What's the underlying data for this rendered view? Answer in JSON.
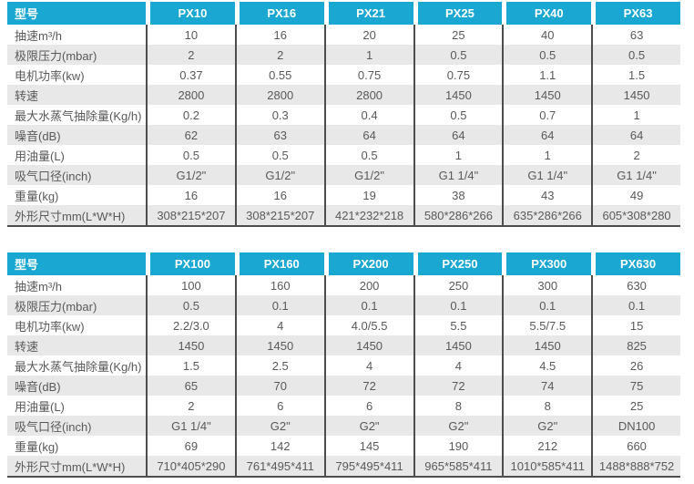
{
  "colors": {
    "header_bg": "#1aa8d3",
    "header_text": "#ffffff",
    "row_bg": "#ffffff",
    "row_alt_bg": "#e8e8e8",
    "text": "#595959",
    "divider": "#4d4d4d"
  },
  "tables": [
    {
      "header": {
        "label": "型号",
        "columns": [
          "PX10",
          "PX16",
          "PX21",
          "PX25",
          "PX40",
          "PX63"
        ]
      },
      "rows": [
        {
          "label": "抽速m³/h",
          "values": [
            "10",
            "16",
            "20",
            "25",
            "40",
            "63"
          ]
        },
        {
          "label": "极限压力(mbar)",
          "values": [
            "2",
            "2",
            "1",
            "0.5",
            "0.5",
            "0.5"
          ]
        },
        {
          "label": "电机功率(kw)",
          "values": [
            "0.37",
            "0.55",
            "0.75",
            "0.75",
            "1.1",
            "1.5"
          ]
        },
        {
          "label": "转速",
          "values": [
            "2800",
            "2800",
            "2800",
            "1450",
            "1450",
            "1450"
          ]
        },
        {
          "label": "最大水蒸气抽除量(Kg/h)",
          "values": [
            "0.2",
            "0.3",
            "0.4",
            "0.5",
            "0.7",
            "1"
          ]
        },
        {
          "label": "噪音(dB)",
          "values": [
            "62",
            "63",
            "64",
            "64",
            "64",
            "64"
          ]
        },
        {
          "label": "用油量(L)",
          "values": [
            "0.5",
            "0.5",
            "0.5",
            "1",
            "1",
            "2"
          ]
        },
        {
          "label": "吸气口径(inch)",
          "values": [
            "G1/2\"",
            "G1/2\"",
            "G1/2\"",
            "G1 1/4\"",
            "G1 1/4\"",
            "G1 1/4\""
          ]
        },
        {
          "label": "重量(kg)",
          "values": [
            "16",
            "16",
            "19",
            "38",
            "43",
            "49"
          ]
        },
        {
          "label": "外形尺寸mm(L*W*H)",
          "values": [
            "308*215*207",
            "308*215*207",
            "421*232*218",
            "580*286*266",
            "635*286*266",
            "605*308*280"
          ]
        }
      ]
    },
    {
      "header": {
        "label": "型号",
        "columns": [
          "PX100",
          "PX160",
          "PX200",
          "PX250",
          "PX300",
          "PX630"
        ]
      },
      "rows": [
        {
          "label": "抽速m³/h",
          "values": [
            "100",
            "160",
            "200",
            "250",
            "300",
            "630"
          ]
        },
        {
          "label": "极限压力(mbar)",
          "values": [
            "0.5",
            "0.1",
            "0.1",
            "0.1",
            "0.1",
            "0.1"
          ]
        },
        {
          "label": "电机功率(kw)",
          "values": [
            "2.2/3.0",
            "4",
            "4.0/5.5",
            "5.5",
            "5.5/7.5",
            "15"
          ]
        },
        {
          "label": "转速",
          "values": [
            "1450",
            "1450",
            "1450",
            "1450",
            "1450",
            "825"
          ]
        },
        {
          "label": "最大水蒸气抽除量(Kg/h)",
          "values": [
            "1.5",
            "2.5",
            "4",
            "4",
            "4.5",
            "26"
          ]
        },
        {
          "label": "噪音(dB)",
          "values": [
            "65",
            "70",
            "72",
            "72",
            "74",
            "75"
          ]
        },
        {
          "label": "用油量(L)",
          "values": [
            "2",
            "6",
            "6",
            "8",
            "8",
            "25"
          ]
        },
        {
          "label": "吸气口径(inch)",
          "values": [
            "G1 1/4\"",
            "G2\"",
            "G2\"",
            "G2\"",
            "G2\"",
            "DN100"
          ]
        },
        {
          "label": "重量(kg)",
          "values": [
            "69",
            "142",
            "145",
            "190",
            "212",
            "660"
          ]
        },
        {
          "label": "外形尺寸mm(L*W*H)",
          "values": [
            "710*405*290",
            "761*495*411",
            "795*495*411",
            "965*585*411",
            "1010*585*411",
            "1488*888*752"
          ]
        }
      ]
    }
  ]
}
